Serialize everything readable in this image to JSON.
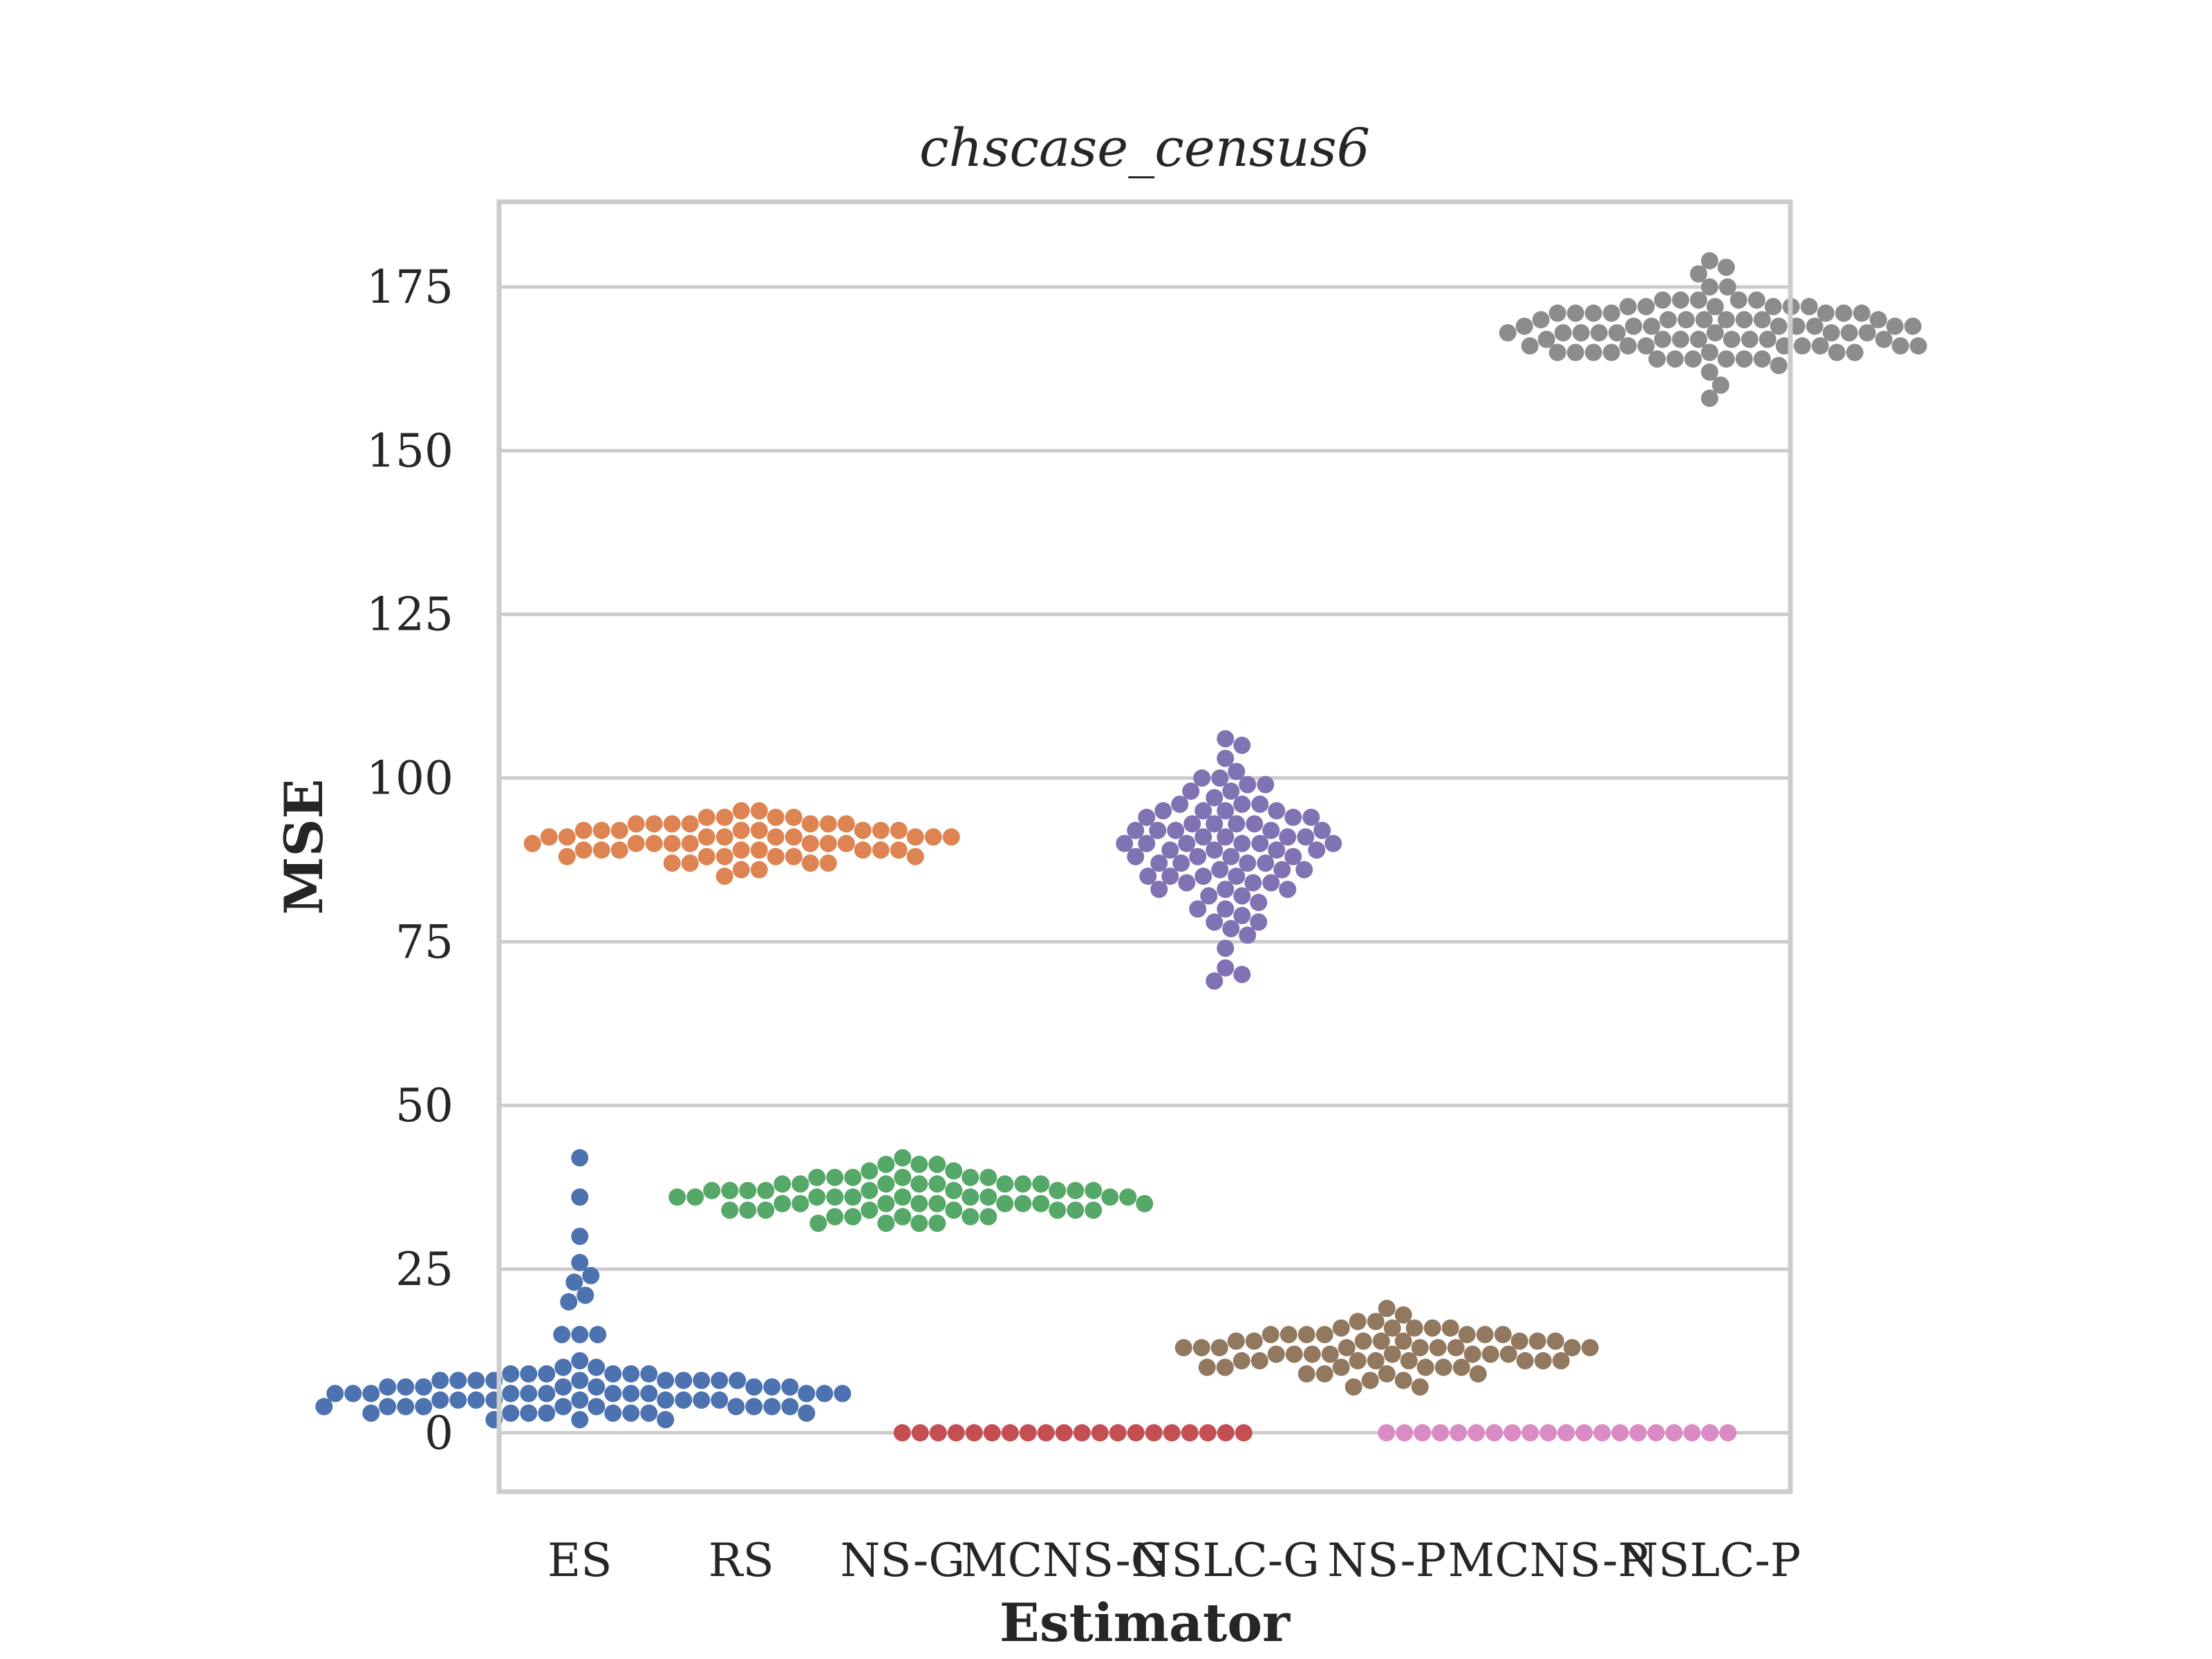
{
  "chart_data": {
    "type": "scatter",
    "subtype": "swarm",
    "title": "chscase_census6",
    "xlabel": "Estimator",
    "ylabel": "MSE",
    "ylim": [
      -9,
      188
    ],
    "yticks": [
      0,
      25,
      50,
      75,
      100,
      125,
      150,
      175
    ],
    "grid": "horizontal",
    "legend": "none",
    "categories": [
      "ES",
      "RS",
      "NS-G",
      "MCNS-G",
      "NSLC-G",
      "NS-P",
      "MCNS-P",
      "NSLC-P"
    ],
    "series": [
      {
        "category": "ES",
        "color": "#4c72b0",
        "values": [
          42,
          36,
          30,
          26,
          24,
          23,
          21,
          20,
          15,
          15,
          15,
          11,
          10,
          9,
          9,
          9,
          9,
          9,
          9,
          10,
          8,
          8,
          8,
          8,
          8,
          8,
          8,
          8,
          8,
          8,
          7,
          7,
          7,
          7,
          7,
          7,
          7,
          7,
          6,
          6,
          6,
          6,
          6,
          6,
          6,
          6,
          6,
          6,
          6,
          6,
          5,
          5,
          5,
          5,
          5,
          5,
          5,
          5,
          5,
          4,
          4,
          4,
          4,
          4,
          4,
          4,
          4,
          4,
          4,
          3,
          3,
          3,
          3,
          3,
          3,
          3,
          3,
          2,
          2,
          2
        ]
      },
      {
        "category": "RS",
        "color": "#dd8452",
        "values": [
          95,
          95,
          94,
          94,
          94,
          94,
          93,
          93,
          93,
          93,
          93,
          93,
          93,
          92,
          92,
          92,
          92,
          92,
          92,
          92,
          92,
          91,
          91,
          91,
          91,
          91,
          91,
          91,
          91,
          91,
          90,
          90,
          90,
          90,
          90,
          90,
          90,
          90,
          89,
          89,
          89,
          89,
          89,
          89,
          89,
          89,
          88,
          88,
          88,
          88,
          88,
          88,
          87,
          87,
          87,
          87,
          86,
          86,
          85
        ]
      },
      {
        "category": "NS-G",
        "color": "#55a868",
        "values": [
          42,
          41,
          41,
          41,
          40,
          40,
          39,
          39,
          39,
          39,
          39,
          39,
          38,
          38,
          38,
          38,
          38,
          38,
          38,
          38,
          37,
          37,
          37,
          37,
          37,
          37,
          37,
          37,
          37,
          36,
          36,
          36,
          36,
          36,
          36,
          36,
          36,
          36,
          36,
          35,
          35,
          35,
          35,
          35,
          35,
          35,
          35,
          35,
          34,
          34,
          34,
          34,
          34,
          34,
          34,
          34,
          33,
          33,
          33,
          33,
          33,
          32,
          32,
          32,
          32
        ]
      },
      {
        "category": "MCNS-G",
        "color": "#c44e52",
        "values": [
          0,
          0,
          0,
          0,
          0,
          0,
          0,
          0,
          0,
          0,
          0,
          0,
          0,
          0,
          0,
          0,
          0,
          0,
          0,
          0
        ]
      },
      {
        "category": "NSLC-G",
        "color": "#8172b3",
        "values": [
          106,
          105,
          103,
          101,
          100,
          100,
          99,
          99,
          98,
          98,
          97,
          96,
          96,
          96,
          95,
          95,
          95,
          95,
          94,
          94,
          94,
          93,
          93,
          93,
          93,
          92,
          92,
          92,
          92,
          92,
          91,
          91,
          91,
          91,
          90,
          90,
          90,
          90,
          90,
          90,
          89,
          89,
          89,
          89,
          88,
          88,
          88,
          88,
          87,
          87,
          87,
          87,
          86,
          86,
          86,
          85,
          85,
          85,
          85,
          84,
          84,
          84,
          83,
          83,
          83,
          82,
          82,
          81,
          80,
          80,
          79,
          78,
          78,
          77,
          76,
          74,
          71,
          70,
          69
        ]
      },
      {
        "category": "NS-P",
        "color": "#937860",
        "values": [
          19,
          18,
          17,
          17,
          16,
          16,
          16,
          16,
          16,
          15,
          15,
          15,
          15,
          15,
          15,
          15,
          14,
          14,
          14,
          14,
          14,
          14,
          14,
          14,
          13,
          13,
          13,
          13,
          13,
          13,
          13,
          13,
          13,
          12,
          12,
          12,
          12,
          12,
          12,
          12,
          12,
          11,
          11,
          11,
          11,
          11,
          11,
          11,
          11,
          10,
          10,
          10,
          10,
          10,
          10,
          9,
          9,
          9,
          9,
          8,
          8,
          7,
          7
        ]
      },
      {
        "category": "MCNS-P",
        "color": "#da8bc3",
        "values": [
          0,
          0,
          0,
          0,
          0,
          0,
          0,
          0,
          0,
          0,
          0,
          0,
          0,
          0,
          0,
          0,
          0,
          0,
          0,
          0
        ]
      },
      {
        "category": "NSLC-P",
        "color": "#8c8c8c",
        "values": [
          179,
          178,
          177,
          175,
          175,
          173,
          173,
          173,
          173,
          173,
          172,
          172,
          172,
          172,
          172,
          172,
          171,
          171,
          171,
          171,
          171,
          171,
          171,
          170,
          170,
          170,
          170,
          170,
          170,
          170,
          170,
          169,
          169,
          169,
          169,
          169,
          169,
          169,
          169,
          168,
          168,
          168,
          168,
          168,
          168,
          168,
          168,
          168,
          167,
          167,
          167,
          167,
          167,
          167,
          167,
          167,
          166,
          166,
          166,
          166,
          166,
          166,
          166,
          166,
          165,
          165,
          165,
          165,
          165,
          165,
          165,
          164,
          164,
          164,
          164,
          164,
          164,
          163,
          162,
          160,
          158
        ]
      }
    ]
  }
}
